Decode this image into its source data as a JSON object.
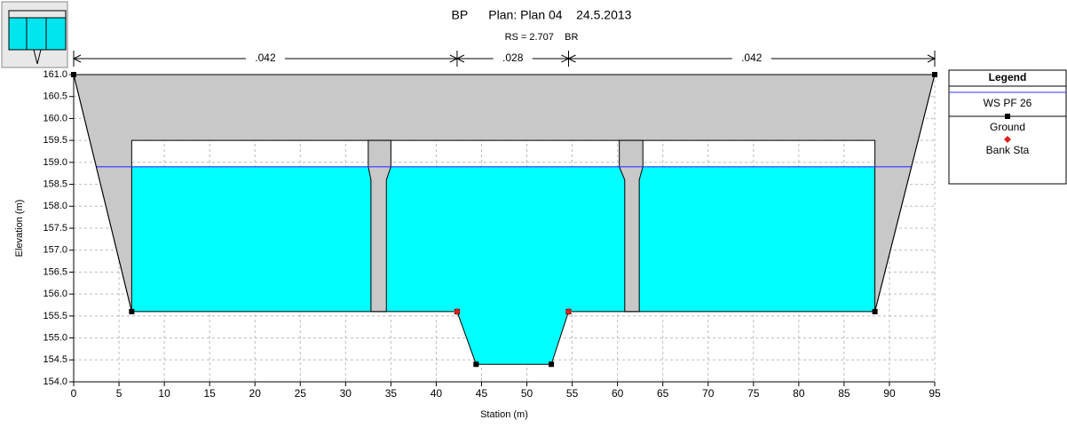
{
  "chart_data": {
    "type": "cross-section",
    "title": "BP      Plan: Plan 04    24.5.2013",
    "subtitle": "RS = 2.707    BR",
    "xlabel": "Station (m)",
    "ylabel": "Elevation (m)",
    "xlim": [
      0,
      95
    ],
    "ylim": [
      154,
      161
    ],
    "xticks": [
      0,
      5,
      10,
      15,
      20,
      25,
      30,
      35,
      40,
      45,
      50,
      55,
      60,
      65,
      70,
      75,
      80,
      85,
      90,
      95
    ],
    "yticks": [
      {
        "value": 154,
        "label": "154.0"
      },
      {
        "value": 154.5,
        "label": "154.5"
      },
      {
        "value": 155,
        "label": "155.0"
      },
      {
        "value": 155.5,
        "label": "155.5"
      },
      {
        "value": 156,
        "label": "156.0"
      },
      {
        "value": 156.5,
        "label": "156.5"
      },
      {
        "value": 157,
        "label": "157.0"
      },
      {
        "value": 157.5,
        "label": "157.5"
      },
      {
        "value": 158,
        "label": "158.0"
      },
      {
        "value": 158.5,
        "label": "158.5"
      },
      {
        "value": 159,
        "label": "159.0"
      },
      {
        "value": 159.5,
        "label": "159.5"
      },
      {
        "value": 160,
        "label": "160.0"
      },
      {
        "value": 160.5,
        "label": "160.5"
      },
      {
        "value": 161,
        "label": "161.0"
      }
    ],
    "grid": true,
    "legend_title": "Legend",
    "series": [
      {
        "name": "WS PF 26",
        "color": "#3030ff",
        "x": [
          2.5,
          92.4
        ],
        "values": [
          158.9,
          158.9
        ]
      },
      {
        "name": "Ground",
        "color": "#000000",
        "x": [
          0,
          6.4,
          42.3,
          44.4,
          52.7,
          54.6,
          88.4,
          95
        ],
        "values": [
          161,
          155.6,
          155.6,
          154.4,
          154.4,
          155.6,
          155.6,
          161
        ]
      },
      {
        "name": "Bank Sta",
        "color": "#e02020",
        "x": [
          42.3,
          54.6
        ],
        "values": [
          155.6,
          155.6
        ]
      }
    ],
    "deck": {
      "x": [
        0,
        95,
        88.4,
        88.4,
        6.4,
        6.4
      ],
      "y": [
        161,
        161,
        155.6,
        159.5,
        159.5,
        155.6
      ]
    },
    "piers": [
      {
        "x": [
          32.8,
          32.8,
          32.5,
          32.5,
          35.0,
          35.0,
          34.5,
          34.5
        ],
        "y": [
          155.6,
          158.6,
          158.9,
          159.5,
          159.5,
          158.9,
          158.6,
          155.6
        ]
      },
      {
        "x": [
          60.8,
          60.8,
          60.2,
          60.2,
          62.8,
          62.8,
          62.4,
          62.4
        ],
        "y": [
          155.6,
          158.6,
          158.9,
          159.5,
          159.5,
          158.9,
          158.6,
          155.6
        ]
      }
    ],
    "n_stations": [
      0,
      42.3,
      54.6,
      95
    ],
    "n_values": [
      ".042",
      ".028",
      ".042"
    ]
  }
}
